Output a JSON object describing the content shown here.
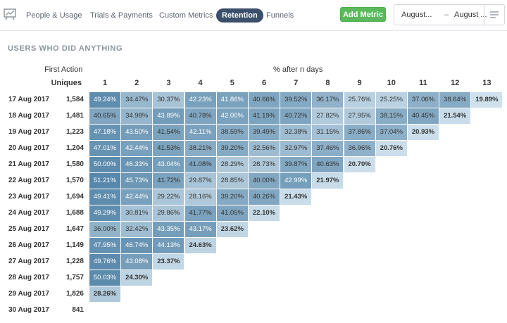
{
  "nav": {
    "tabs": [
      {
        "label": "People & Usage",
        "active": false
      },
      {
        "label": "Trials & Payments",
        "active": false
      },
      {
        "label": "Custom Metrics",
        "active": false
      },
      {
        "label": "Retention",
        "active": true
      },
      {
        "label": "Funnels",
        "active": false
      }
    ],
    "add_metric_label": "Add Metric",
    "date_from": "August...",
    "date_separator": "–",
    "date_to": "August ...",
    "icons": {
      "app": "chart-presentation-icon",
      "menu": "hamburger-menu-icon"
    }
  },
  "section_title": "USERS WHO DID ANYTHING",
  "table": {
    "first_action_label": "First Action",
    "uniques_label": "Uniques",
    "pct_label": "% after n days",
    "columns": [
      "1",
      "2",
      "3",
      "4",
      "5",
      "6",
      "7",
      "8",
      "9",
      "10",
      "11",
      "12",
      "13"
    ],
    "rows": [
      {
        "date": "17 Aug 2017",
        "uniques": "1,584",
        "cells": [
          "49.24%",
          "34.47%",
          "30.37%",
          "42.23%",
          "41.86%",
          "40.66%",
          "39.52%",
          "36.17%",
          "25.76%",
          "25.25%",
          "37.06%",
          "38.64%",
          "19.89%"
        ]
      },
      {
        "date": "18 Aug 2017",
        "uniques": "1,481",
        "cells": [
          "40.65%",
          "34.98%",
          "43.89%",
          "40.78%",
          "42.00%",
          "41.19%",
          "40.72%",
          "27.82%",
          "27.95%",
          "38.15%",
          "40.45%",
          "21.54%"
        ]
      },
      {
        "date": "19 Aug 2017",
        "uniques": "1,223",
        "cells": [
          "47.18%",
          "43.50%",
          "41.54%",
          "42.11%",
          "38.59%",
          "39.49%",
          "32.38%",
          "31.15%",
          "37.86%",
          "37.04%",
          "20.93%"
        ]
      },
      {
        "date": "20 Aug 2017",
        "uniques": "1,204",
        "cells": [
          "47.01%",
          "42.44%",
          "41.53%",
          "38.21%",
          "39.20%",
          "32.56%",
          "32.97%",
          "37.46%",
          "36.96%",
          "20.76%"
        ]
      },
      {
        "date": "21 Aug 2017",
        "uniques": "1,580",
        "cells": [
          "50.00%",
          "46.33%",
          "43.04%",
          "41.08%",
          "28.29%",
          "28.73%",
          "39.87%",
          "40.63%",
          "20.70%"
        ]
      },
      {
        "date": "22 Aug 2017",
        "uniques": "1,570",
        "cells": [
          "51.21%",
          "45.73%",
          "41.72%",
          "29.87%",
          "28.85%",
          "40.00%",
          "42.99%",
          "21.97%"
        ]
      },
      {
        "date": "23 Aug 2017",
        "uniques": "1,694",
        "cells": [
          "49.41%",
          "42.44%",
          "29.22%",
          "28.16%",
          "39.20%",
          "40.26%",
          "21.43%"
        ]
      },
      {
        "date": "24 Aug 2017",
        "uniques": "1,688",
        "cells": [
          "49.29%",
          "30.81%",
          "29.86%",
          "41.77%",
          "41.05%",
          "22.10%"
        ]
      },
      {
        "date": "25 Aug 2017",
        "uniques": "1,647",
        "cells": [
          "36.00%",
          "32.42%",
          "43.35%",
          "43.17%",
          "23.62%"
        ]
      },
      {
        "date": "26 Aug 2017",
        "uniques": "1,149",
        "cells": [
          "47.95%",
          "46.74%",
          "44.13%",
          "24.63%"
        ]
      },
      {
        "date": "27 Aug 2017",
        "uniques": "1,228",
        "cells": [
          "49.76%",
          "43.08%",
          "23.37%"
        ]
      },
      {
        "date": "28 Aug 2017",
        "uniques": "1,757",
        "cells": [
          "50.03%",
          "24.30%"
        ]
      },
      {
        "date": "29 Aug 2017",
        "uniques": "1,826",
        "cells": [
          "28.26%"
        ]
      },
      {
        "date": "30 Aug 2017",
        "uniques": "841",
        "cells": []
      }
    ]
  }
}
